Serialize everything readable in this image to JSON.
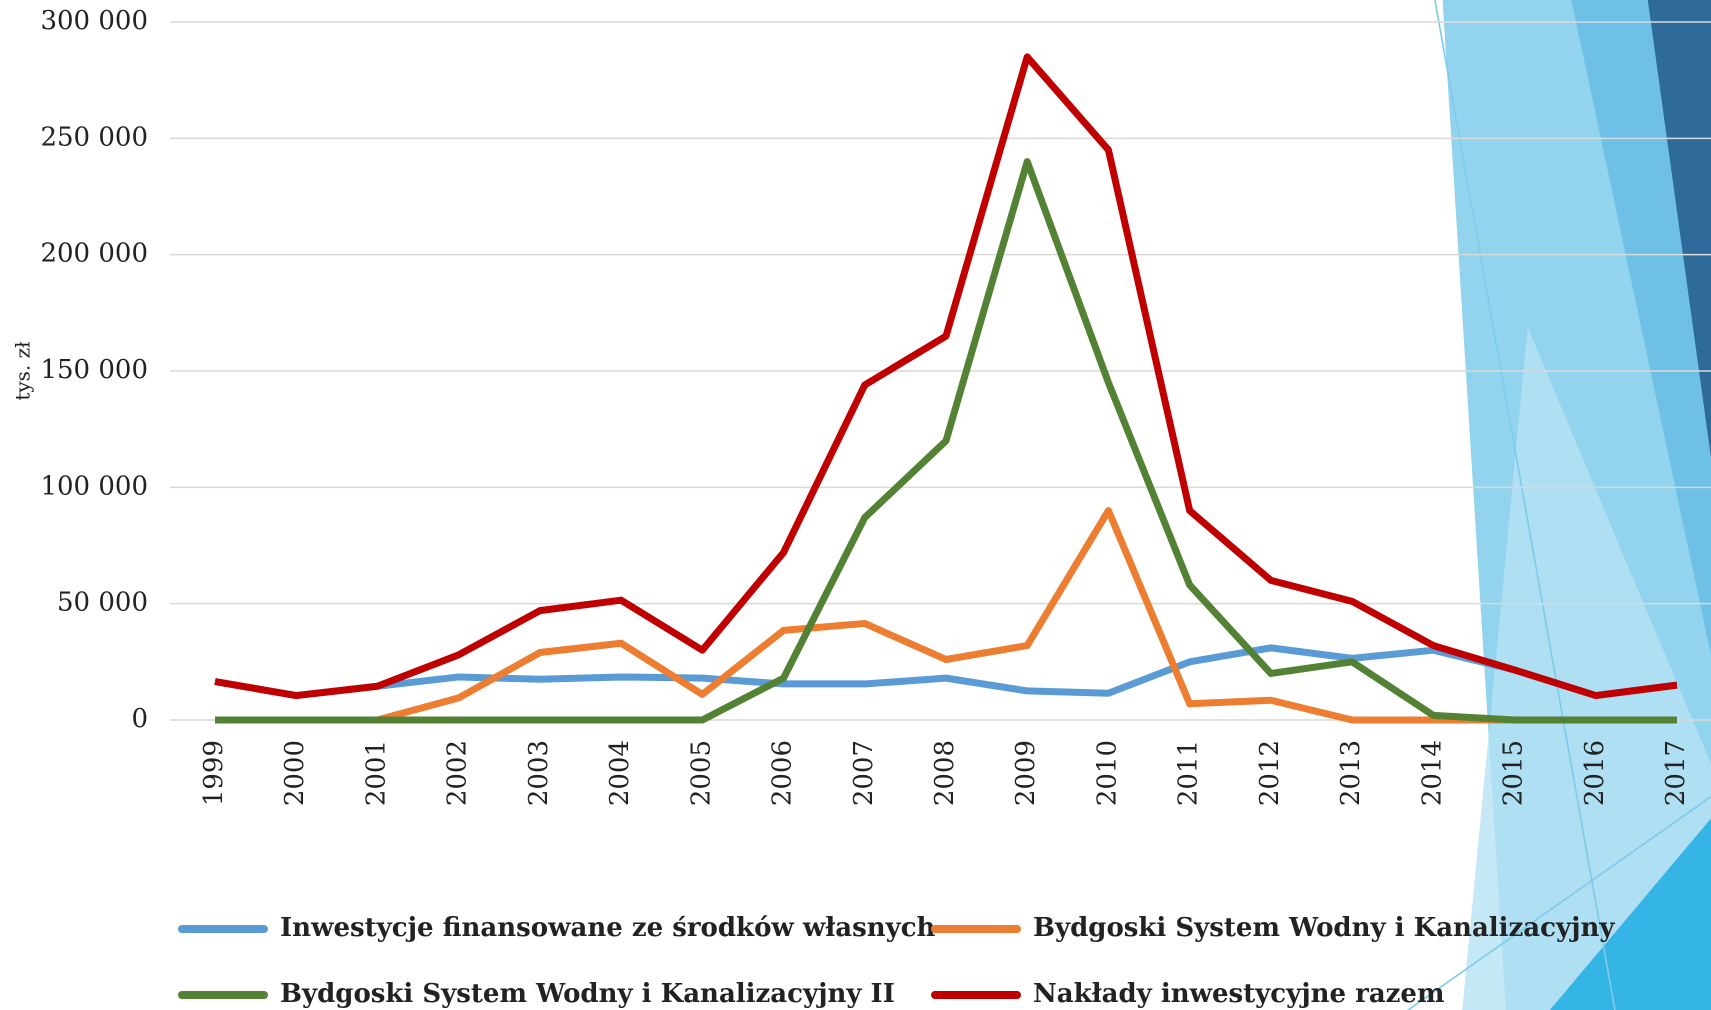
{
  "chart_data": {
    "type": "line",
    "y_label": "tys. zł",
    "categories": [
      "1999",
      "2000",
      "2001",
      "2002",
      "2003",
      "2004",
      "2005",
      "2006",
      "2007",
      "2008",
      "2009",
      "2010",
      "2011",
      "2012",
      "2013",
      "2014",
      "2015",
      "2016",
      "2017"
    ],
    "series": [
      {
        "name": "Inwestycje finansowane ze środków własnych",
        "color": "#5b9bd5",
        "values": [
          16500,
          10500,
          14500,
          18500,
          17500,
          18500,
          18000,
          15500,
          15500,
          18000,
          12500,
          11500,
          25000,
          31000,
          26500,
          30000,
          21500,
          10500,
          15000
        ]
      },
      {
        "name": "Bydgoski System Wodny i Kanalizacyjny",
        "color": "#ed7d31",
        "values": [
          0,
          0,
          0,
          9500,
          29000,
          33000,
          11000,
          38500,
          41500,
          26000,
          32000,
          90000,
          7000,
          8500,
          0,
          0,
          0,
          0,
          0
        ]
      },
      {
        "name": "Bydgoski System Wodny i Kanalizacyjny II",
        "color": "#548235",
        "values": [
          0,
          0,
          0,
          0,
          0,
          0,
          0,
          18000,
          87000,
          120000,
          240000,
          145000,
          58000,
          20000,
          25000,
          2000,
          0,
          0,
          0
        ]
      },
      {
        "name": "Nakłady inwestycyjne razem",
        "color": "#c00000",
        "values": [
          16500,
          10500,
          14500,
          28000,
          47000,
          51500,
          30000,
          72000,
          144000,
          165000,
          285000,
          245000,
          90000,
          60000,
          51000,
          32000,
          21500,
          10500,
          15000
        ]
      }
    ],
    "ylim": [
      0,
      300000
    ],
    "yticks": [
      {
        "value": 0,
        "label": "0"
      },
      {
        "value": 50000,
        "label": "50 000"
      },
      {
        "value": 100000,
        "label": "100 000"
      },
      {
        "value": 150000,
        "label": "150 000"
      },
      {
        "value": 200000,
        "label": "200 000"
      },
      {
        "value": 250000,
        "label": "250 000"
      },
      {
        "value": 300000,
        "label": "300 000"
      }
    ],
    "grid": true
  }
}
